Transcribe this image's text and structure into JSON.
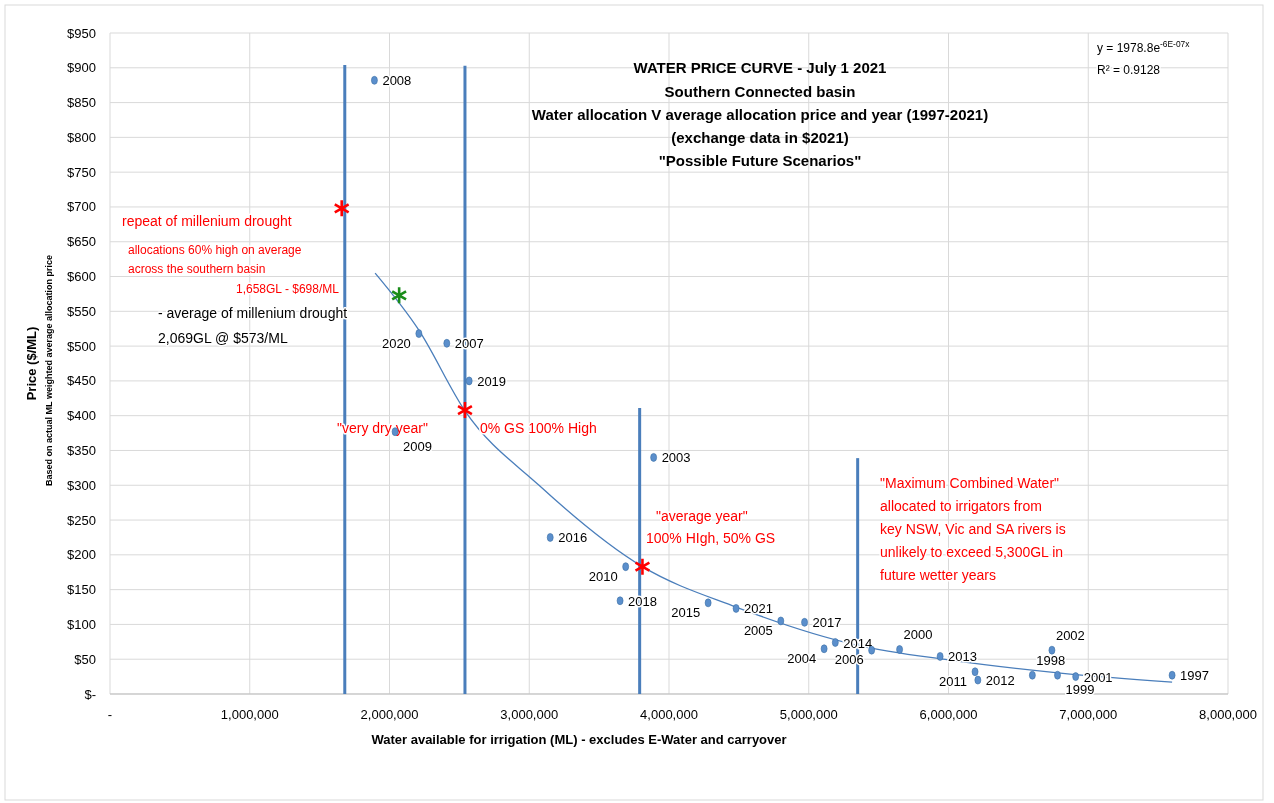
{
  "chart_data": {
    "type": "scatter",
    "title": "WATER PRICE CURVE - July 1 2021",
    "subtitle": "Southern Connected basin\nWater allocation V  average allocation price and year (1997-2021)\n(exchange data in $2021)\n\"Possible Future Scenarios\"",
    "xlabel": "Water available for irrigation (ML) - excludes E-Water and carryover",
    "ylabel": "Price ($/ML)\nBased on actual ML weighted average allocation price",
    "xlim": [
      0,
      8000000
    ],
    "xticks": [
      {
        "value": 0,
        "label": "-"
      },
      {
        "value": 1000000,
        "label": "1,000,000"
      },
      {
        "value": 2000000,
        "label": "2,000,000"
      },
      {
        "value": 3000000,
        "label": "3,000,000"
      },
      {
        "value": 4000000,
        "label": "4,000,000"
      },
      {
        "value": 5000000,
        "label": "5,000,000"
      },
      {
        "value": 6000000,
        "label": "6,000,000"
      },
      {
        "value": 7000000,
        "label": "7,000,000"
      },
      {
        "value": 8000000,
        "label": "8,000,000"
      }
    ],
    "ylim": [
      0,
      950
    ],
    "yticks": [
      {
        "value": 0,
        "label": "$-"
      },
      {
        "value": 50,
        "label": "$50"
      },
      {
        "value": 100,
        "label": "$100"
      },
      {
        "value": 150,
        "label": "$150"
      },
      {
        "value": 200,
        "label": "$200"
      },
      {
        "value": 250,
        "label": "$250"
      },
      {
        "value": 300,
        "label": "$300"
      },
      {
        "value": 350,
        "label": "$350"
      },
      {
        "value": 400,
        "label": "$400"
      },
      {
        "value": 450,
        "label": "$450"
      },
      {
        "value": 500,
        "label": "$500"
      },
      {
        "value": 550,
        "label": "$550"
      },
      {
        "value": 600,
        "label": "$600"
      },
      {
        "value": 650,
        "label": "$650"
      },
      {
        "value": 700,
        "label": "$700"
      },
      {
        "value": 750,
        "label": "$750"
      },
      {
        "value": 800,
        "label": "$800"
      },
      {
        "value": 850,
        "label": "$850"
      },
      {
        "value": 900,
        "label": "$900"
      },
      {
        "value": 950,
        "label": "$950"
      }
    ],
    "grid": true,
    "series": [
      {
        "type": "line",
        "color": "#4a7ebb",
        "marker": "none",
        "line_style": "solid",
        "x": [
          1680000,
          1680000
        ],
        "values": [
          0,
          904
        ]
      },
      {
        "type": "line",
        "color": "#4a7ebb",
        "marker": "none",
        "line_style": "solid",
        "x": [
          2540000,
          2540000
        ],
        "values": [
          0,
          903
        ]
      },
      {
        "type": "line",
        "color": "#4a7ebb",
        "marker": "none",
        "line_style": "solid",
        "x": [
          3790000,
          3790000
        ],
        "values": [
          0,
          411
        ]
      },
      {
        "type": "line",
        "color": "#4a7ebb",
        "marker": "none",
        "line_style": "solid",
        "x": [
          5350000,
          5350000
        ],
        "values": [
          0,
          339
        ]
      },
      {
        "type": "line",
        "color": "#4a7ebb",
        "marker": "none",
        "line_style": "solid",
        "x": [
          1897000,
          2210000,
          2540000,
          3070000,
          3810000,
          4480000,
          5350000,
          6000000,
          6800000,
          7600000
        ],
        "values": [
          605,
          523,
          407,
          300,
          183,
          125,
          70,
          49,
          30,
          17
        ]
      },
      {
        "color": "#5b8fcc",
        "marker": "circle",
        "x": [
          1892000,
          2210000,
          2410000,
          2570000,
          2040000,
          3890000,
          3150000,
          3690000,
          3650000,
          4280000,
          4480000,
          4800000,
          4970000,
          5110000,
          5190000,
          5450000,
          5650000,
          5940000,
          6210000,
          6190000,
          6600000,
          6740000,
          6780000,
          6910000,
          7600000
        ],
        "values": [
          882,
          518,
          504,
          450,
          377,
          340,
          225,
          183,
          134,
          131,
          123,
          105,
          103,
          65,
          74,
          63,
          64,
          54,
          20,
          32,
          27,
          63,
          27,
          25,
          27
        ]
      },
      {
        "type": "scatter",
        "marker": "cross",
        "colors": [
          "#ff0000",
          "#1a8c1a",
          "#ff0000",
          "#ff0000"
        ],
        "x": [
          1658000,
          2069000,
          2540000,
          3810000
        ],
        "values": [
          698,
          573,
          408,
          183
        ]
      }
    ],
    "annotations": [
      "y = 1978.8e$^{-6E-07x}$",
      "R² = 0.9128",
      "repeat of millenium drought",
      "allocations 60% high on average",
      "across the southern basin",
      "1,658GL - $698/ML",
      "- average of millenium drought",
      "2,069GL @ $573/ML",
      "\"very dry year\"",
      "0% GS 100% High",
      "\"average year\"",
      "100% HIgh, 50% GS",
      "\"Maximum Combined Water\"",
      "allocated to irrigators from",
      "key NSW, Vic and SA rivers is",
      "unlikely to exceed 5,300GL in",
      "future wetter years",
      {
        "text": "2008",
        "x": 1892000,
        "y": 882
      },
      {
        "text": "2020",
        "x": 2210000,
        "y": 518
      },
      {
        "text": "2007",
        "x": 2410000,
        "y": 504
      },
      {
        "text": "2019",
        "x": 2570000,
        "y": 450
      },
      {
        "text": "2009",
        "x": 2040000,
        "y": 377
      },
      {
        "text": "2003",
        "x": 3890000,
        "y": 340
      },
      {
        "text": "2016",
        "x": 3150000,
        "y": 225
      },
      {
        "text": "2010",
        "x": 3690000,
        "y": 183
      },
      {
        "text": "2018",
        "x": 3650000,
        "y": 134
      },
      {
        "text": "2015",
        "x": 4280000,
        "y": 131
      },
      {
        "text": "2021",
        "x": 4480000,
        "y": 123
      },
      {
        "text": "2005",
        "x": 4800000,
        "y": 105
      },
      {
        "text": "2017",
        "x": 4970000,
        "y": 103
      },
      {
        "text": "2004",
        "x": 5110000,
        "y": 65
      },
      {
        "text": "2014",
        "x": 5190000,
        "y": 74
      },
      {
        "text": "2006",
        "x": 5450000,
        "y": 63
      },
      {
        "text": "2000",
        "x": 5650000,
        "y": 64
      },
      {
        "text": "2013",
        "x": 5940000,
        "y": 54
      },
      {
        "text": "2012",
        "x": 6210000,
        "y": 20
      },
      {
        "text": "2011",
        "x": 6190000,
        "y": 32
      },
      {
        "text": "1998",
        "x": 6600000,
        "y": 27
      },
      {
        "text": "2002",
        "x": 6740000,
        "y": 63
      },
      {
        "text": "1999",
        "x": 6780000,
        "y": 27
      },
      {
        "text": "2001",
        "x": 6910000,
        "y": 25
      },
      {
        "text": "1997",
        "x": 7600000,
        "y": 27
      }
    ]
  }
}
